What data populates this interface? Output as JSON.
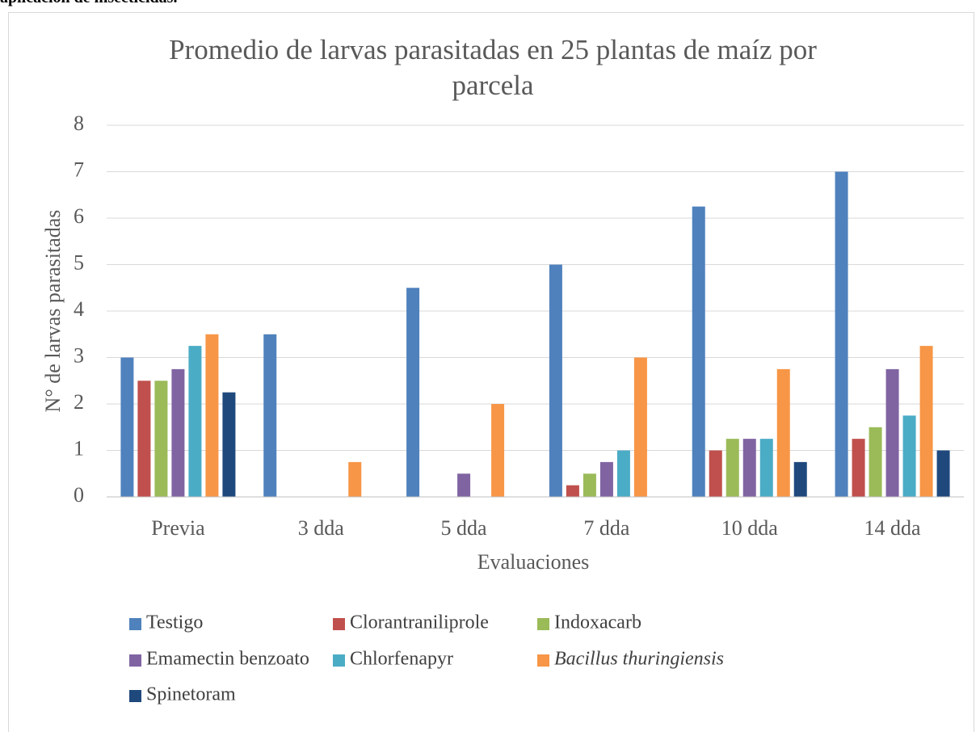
{
  "caption": "aplicación de insecticidas.",
  "chart_data": {
    "type": "bar",
    "title": "Promedio de larvas parasitadas en 25 plantas de maíz por parcela",
    "xlabel": "Evaluaciones",
    "ylabel": "N° de larvas parasitadas",
    "categories": [
      "Previa",
      "3 dda",
      "5 dda",
      "7 dda",
      "10 dda",
      "14 dda"
    ],
    "series": [
      {
        "name": "Testigo",
        "color": "#4f81bd",
        "values": [
          3,
          3.5,
          4.5,
          5,
          6.25,
          7
        ]
      },
      {
        "name": "Clorantraniliprole",
        "color": "#c0504d",
        "values": [
          2.5,
          0,
          0,
          0.25,
          1,
          1.25
        ]
      },
      {
        "name": "Indoxacarb",
        "color": "#9bbb59",
        "values": [
          2.5,
          0,
          0,
          0.5,
          1.25,
          1.5
        ]
      },
      {
        "name": "Emamectin benzoato",
        "color": "#8064a2",
        "values": [
          2.75,
          0,
          0.5,
          0.75,
          1.25,
          2.75
        ]
      },
      {
        "name": "Chlorfenapyr",
        "color": "#4bacc6",
        "values": [
          3.25,
          0,
          0,
          1,
          1.25,
          1.75
        ]
      },
      {
        "name": "Bacillus thuringiensis",
        "color": "#f79646",
        "italic": true,
        "values": [
          3.5,
          0.75,
          2,
          3,
          2.75,
          3.25
        ]
      },
      {
        "name": "Spinetoram",
        "color": "#1f497d",
        "values": [
          2.25,
          0,
          0,
          0,
          0.75,
          1
        ]
      }
    ],
    "ylim": [
      0,
      8
    ],
    "yticks": [
      0,
      1,
      2,
      3,
      4,
      5,
      6,
      7,
      8
    ],
    "grid": true,
    "legend": "bottom"
  }
}
